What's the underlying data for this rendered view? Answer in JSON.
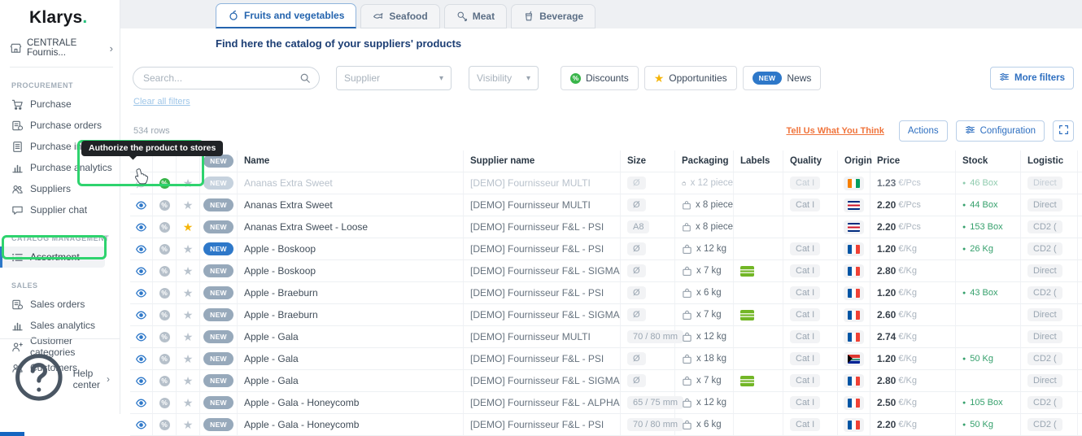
{
  "sidebar": {
    "logo_text": "Klarys",
    "logo_dot": ".",
    "org": {
      "label": "CENTRALE Fournis...",
      "icon": "store",
      "chevron": "›"
    },
    "sections": [
      {
        "title": "PROCUREMENT",
        "items": [
          {
            "id": "purchase",
            "icon": "cart",
            "label": "Purchase"
          },
          {
            "id": "purchase-orders",
            "icon": "orders",
            "label": "Purchase orders"
          },
          {
            "id": "purchase-invoices",
            "icon": "invoice",
            "label": "Purchase invoices"
          },
          {
            "id": "purchase-analytics",
            "icon": "chart",
            "label": "Purchase analytics"
          },
          {
            "id": "suppliers",
            "icon": "people",
            "label": "Suppliers"
          },
          {
            "id": "supplier-chat",
            "icon": "chat",
            "label": "Supplier chat"
          }
        ]
      },
      {
        "title": "CATALOG MANAGEMENT",
        "items": [
          {
            "id": "assortment",
            "icon": "list",
            "label": "Assortment",
            "active": true
          }
        ]
      },
      {
        "title": "SALES",
        "items": [
          {
            "id": "sales-orders",
            "icon": "orders",
            "label": "Sales orders"
          },
          {
            "id": "sales-analytics",
            "icon": "chart",
            "label": "Sales analytics"
          },
          {
            "id": "customer-categories",
            "icon": "persontag",
            "label": "Customer categories"
          },
          {
            "id": "customers",
            "icon": "people",
            "label": "Customers"
          }
        ]
      }
    ],
    "help_label": "Help center",
    "help_chevron": "›"
  },
  "tabs": [
    {
      "id": "fruits-and-vegetables",
      "icon": "apple",
      "label": "Fruits and vegetables",
      "active": true
    },
    {
      "id": "seafood",
      "icon": "fish",
      "label": "Seafood",
      "active": false
    },
    {
      "id": "meat",
      "icon": "meat",
      "label": "Meat",
      "active": false
    },
    {
      "id": "beverage",
      "icon": "cup",
      "label": "Beverage",
      "active": false
    }
  ],
  "subtitle": "Find here the catalog of your suppliers' products",
  "filters": {
    "search_placeholder": "Search...",
    "supplier_label": "Supplier",
    "visibility_label": "Visibility",
    "discounts_label": "Discounts",
    "opportunities_label": "Opportunities",
    "news_badge": "NEW",
    "news_label": "News",
    "more_label": "More filters",
    "clear_label": "Clear all filters"
  },
  "toolbar": {
    "rows_count": "534 rows",
    "feedback": "Tell Us What You Think",
    "actions_label": "Actions",
    "config_label": "Configuration"
  },
  "tooltip": {
    "text": "Authorize the product to stores"
  },
  "table": {
    "badge_label": "NEW",
    "headers": {
      "name": "Name",
      "supplier": "Supplier name",
      "size": "Size",
      "packaging": "Packaging",
      "labels": "Labels",
      "quality": "Quality",
      "origin": "Origin",
      "price": "Price",
      "stock": "Stock",
      "logistic": "Logistic"
    },
    "rows": [
      {
        "eye": "off",
        "discount": "on",
        "star": "off",
        "badge": "mutedp",
        "muted": true,
        "name": "Ananas Extra Sweet",
        "supplier": "[DEMO] Fournisseur MULTI",
        "size": "Ø",
        "packaging": "x 12 piece",
        "label": false,
        "quality": "Cat I",
        "origin": "ci",
        "price": "1.23",
        "unit": "€/Pcs",
        "stock": "46 Box",
        "logistic": "Direct"
      },
      {
        "eye": "on",
        "discount": "off",
        "star": "off",
        "badge": "gray",
        "muted": false,
        "name": "Ananas Extra Sweet",
        "supplier": "[DEMO] Fournisseur MULTI",
        "size": "Ø",
        "packaging": "x 8 piece",
        "label": false,
        "quality": "Cat I",
        "origin": "cr",
        "price": "2.20",
        "unit": "€/Pcs",
        "stock": "44 Box",
        "logistic": "Direct"
      },
      {
        "eye": "on",
        "discount": "off",
        "star": "fav",
        "badge": "gray",
        "muted": false,
        "name": "Ananas Extra Sweet - Loose",
        "supplier": "[DEMO] Fournisseur F&L - PSI",
        "size": "A8",
        "packaging": "x 8 piece",
        "label": false,
        "quality": "",
        "origin": "cr",
        "price": "2.20",
        "unit": "€/Pcs",
        "stock": "153 Box",
        "logistic": "CD2 ("
      },
      {
        "eye": "on",
        "discount": "off",
        "star": "off",
        "badge": "blue",
        "muted": false,
        "name": "Apple - Boskoop",
        "supplier": "[DEMO] Fournisseur F&L - PSI",
        "size": "Ø",
        "packaging": "x 12 kg",
        "label": false,
        "quality": "Cat I",
        "origin": "fr",
        "price": "1.20",
        "unit": "€/Kg",
        "stock": "26 Kg",
        "logistic": "CD2 ("
      },
      {
        "eye": "on",
        "discount": "off",
        "star": "off",
        "badge": "gray",
        "muted": false,
        "name": "Apple - Boskoop",
        "supplier": "[DEMO] Fournisseur F&L - SIGMA",
        "size": "Ø",
        "packaging": "x 7 kg",
        "label": true,
        "quality": "Cat I",
        "origin": "fr",
        "price": "2.80",
        "unit": "€/Kg",
        "stock": "",
        "logistic": "Direct"
      },
      {
        "eye": "on",
        "discount": "off",
        "star": "off",
        "badge": "gray",
        "muted": false,
        "name": "Apple - Braeburn",
        "supplier": "[DEMO] Fournisseur F&L - PSI",
        "size": "Ø",
        "packaging": "x 6 kg",
        "label": false,
        "quality": "Cat I",
        "origin": "fr",
        "price": "1.20",
        "unit": "€/Kg",
        "stock": "43 Box",
        "logistic": "CD2 ("
      },
      {
        "eye": "on",
        "discount": "off",
        "star": "off",
        "badge": "gray",
        "muted": false,
        "name": "Apple - Braeburn",
        "supplier": "[DEMO] Fournisseur F&L - SIGMA",
        "size": "Ø",
        "packaging": "x 7 kg",
        "label": true,
        "quality": "Cat I",
        "origin": "fr",
        "price": "2.60",
        "unit": "€/Kg",
        "stock": "",
        "logistic": "Direct"
      },
      {
        "eye": "on",
        "discount": "off",
        "star": "off",
        "badge": "gray",
        "muted": false,
        "name": "Apple - Gala",
        "supplier": "[DEMO] Fournisseur MULTI",
        "size": "70 / 80 mm",
        "packaging": "x 12 kg",
        "label": false,
        "quality": "Cat I",
        "origin": "fr",
        "price": "2.74",
        "unit": "€/Kg",
        "stock": "",
        "logistic": "Direct"
      },
      {
        "eye": "on",
        "discount": "off",
        "star": "off",
        "badge": "gray",
        "muted": false,
        "name": "Apple - Gala",
        "supplier": "[DEMO] Fournisseur F&L - PSI",
        "size": "Ø",
        "packaging": "x 18 kg",
        "label": false,
        "quality": "Cat I",
        "origin": "za",
        "price": "1.20",
        "unit": "€/Kg",
        "stock": "50 Kg",
        "logistic": "CD2 ("
      },
      {
        "eye": "on",
        "discount": "off",
        "star": "off",
        "badge": "gray",
        "muted": false,
        "name": "Apple - Gala",
        "supplier": "[DEMO] Fournisseur F&L - SIGMA",
        "size": "Ø",
        "packaging": "x 7 kg",
        "label": true,
        "quality": "Cat I",
        "origin": "fr",
        "price": "2.80",
        "unit": "€/Kg",
        "stock": "",
        "logistic": "Direct"
      },
      {
        "eye": "on",
        "discount": "off",
        "star": "off",
        "badge": "gray",
        "muted": false,
        "name": "Apple - Gala - Honeycomb",
        "supplier": "[DEMO] Fournisseur F&L - ALPHA",
        "size": "65 / 75 mm",
        "packaging": "x 12 kg",
        "label": false,
        "quality": "Cat I",
        "origin": "fr",
        "price": "2.50",
        "unit": "€/Kg",
        "stock": "105 Box",
        "logistic": "CD2 ("
      },
      {
        "eye": "on",
        "discount": "off",
        "star": "off",
        "badge": "gray",
        "muted": false,
        "name": "Apple - Gala - Honeycomb",
        "supplier": "[DEMO] Fournisseur F&L - PSI",
        "size": "70 / 80 mm",
        "packaging": "x 6 kg",
        "label": false,
        "quality": "Cat I",
        "origin": "fr",
        "price": "2.20",
        "unit": "€/Kg",
        "stock": "50 Kg",
        "logistic": "CD2 ("
      }
    ]
  },
  "colors": {
    "accent_blue": "#2e78c9",
    "annotation_green": "#2ed36e",
    "feedback_orange": "#f0743c",
    "star_yellow": "#f5b50a",
    "stock_green": "#35a06c",
    "discount_green": "#39b54a"
  }
}
